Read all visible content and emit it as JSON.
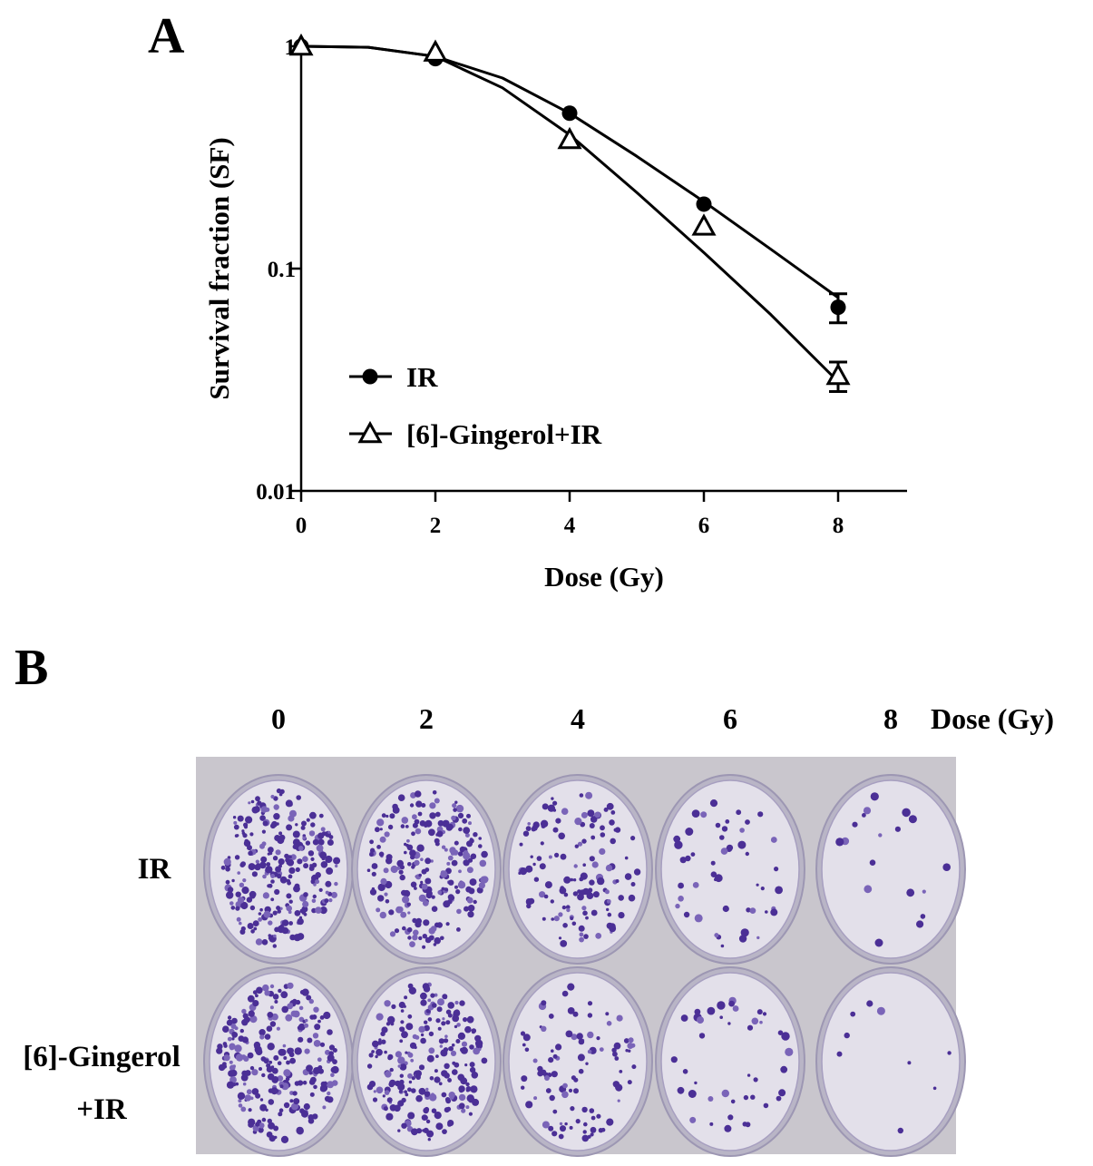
{
  "panel_a": {
    "label": "A"
  },
  "panel_b": {
    "label": "B",
    "dose_header": [
      "0",
      "2",
      "4",
      "6",
      "8"
    ],
    "dose_unit_label": "Dose (Gy)",
    "rows": [
      {
        "label_lines": [
          "IR"
        ],
        "colony_counts_relative": [
          1.0,
          0.9,
          0.5,
          0.19,
          0.07
        ]
      },
      {
        "label_lines": [
          "[6]-Gingerol",
          "+IR"
        ],
        "colony_counts_relative": [
          1.0,
          0.9,
          0.38,
          0.16,
          0.033
        ]
      }
    ],
    "colors": {
      "background": "#c9c6cd",
      "dish": "#e3e0ea",
      "colony": "#4b2f96",
      "colony_light": "#7a64b8"
    }
  },
  "chart_data": {
    "type": "line",
    "xlabel": "Dose (Gy)",
    "ylabel": "Survival fraction (SF)",
    "xlim": [
      0,
      9
    ],
    "ylim": [
      0.01,
      1
    ],
    "yscale": "log",
    "x_ticks": [
      "0",
      "2",
      "4",
      "6",
      "8"
    ],
    "y_ticks": [
      "0.01",
      "0.1",
      "1"
    ],
    "legend_position": "bottom-left",
    "series": [
      {
        "name": "IR",
        "marker": "filled-circle",
        "x": [
          0,
          2,
          4,
          6,
          8
        ],
        "y": [
          1.0,
          0.88,
          0.5,
          0.195,
          0.067
        ],
        "error": [
          0,
          0,
          0,
          0,
          0.01
        ],
        "fit_curve": [
          [
            0,
            1.0
          ],
          [
            1,
            0.99
          ],
          [
            2,
            0.9
          ],
          [
            3,
            0.72
          ],
          [
            4,
            0.5
          ],
          [
            5,
            0.32
          ],
          [
            6,
            0.2
          ],
          [
            7,
            0.122
          ],
          [
            8,
            0.074
          ]
        ]
      },
      {
        "name": "[6]-Gingerol+IR",
        "marker": "open-triangle",
        "x": [
          0,
          2,
          4,
          6,
          8
        ],
        "y": [
          1.0,
          0.94,
          0.38,
          0.155,
          0.033
        ],
        "error": [
          0,
          0,
          0,
          0,
          0.005
        ],
        "fit_curve": [
          [
            0,
            1.0
          ],
          [
            1,
            0.99
          ],
          [
            2,
            0.9
          ],
          [
            3,
            0.65
          ],
          [
            4,
            0.4
          ],
          [
            5,
            0.22
          ],
          [
            6,
            0.118
          ],
          [
            7,
            0.062
          ],
          [
            8,
            0.031
          ]
        ]
      }
    ]
  }
}
